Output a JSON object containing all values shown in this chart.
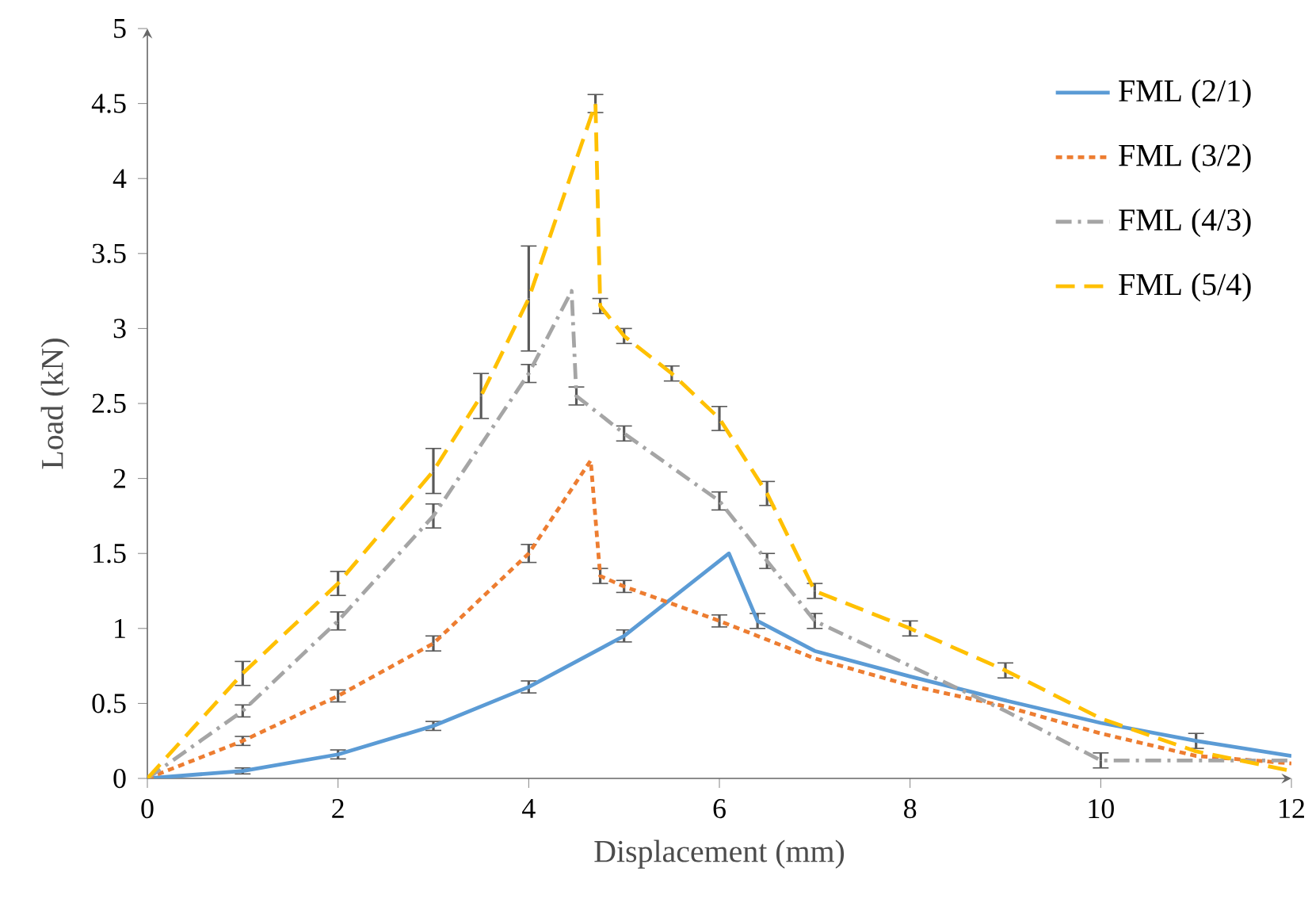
{
  "chart_data": {
    "type": "line",
    "xlabel": "Displacement (mm)",
    "ylabel": "Load (kN)",
    "xlim": [
      0,
      12
    ],
    "ylim": [
      0,
      5
    ],
    "xticks": [
      0,
      2,
      4,
      6,
      8,
      10,
      12
    ],
    "yticks": [
      0,
      0.5,
      1,
      1.5,
      2,
      2.5,
      3,
      3.5,
      4,
      4.5,
      5
    ],
    "grid": false,
    "legend": "top right",
    "marker": "none",
    "series": [
      {
        "name": "FML (2/1)",
        "color": "#5b9bd5",
        "line_style": "solid",
        "x": [
          0,
          1,
          2,
          3,
          4,
          5,
          6.1,
          6.4,
          7,
          8,
          9,
          10,
          11,
          12
        ],
        "values": [
          0,
          0.05,
          0.16,
          0.35,
          0.61,
          0.95,
          1.5,
          1.05,
          0.85,
          0.68,
          0.52,
          0.37,
          0.25,
          0.15
        ],
        "errors": [
          null,
          0.02,
          0.03,
          0.03,
          0.04,
          0.04,
          null,
          0.05,
          null,
          null,
          null,
          null,
          0.05,
          null
        ]
      },
      {
        "name": "FML (3/2)",
        "color": "#ed7d31",
        "line_style": "dotted",
        "x": [
          0,
          1,
          2,
          3,
          4,
          4.65,
          4.75,
          5,
          6,
          7,
          8,
          9,
          10,
          11,
          12
        ],
        "values": [
          0,
          0.25,
          0.55,
          0.9,
          1.5,
          2.12,
          1.35,
          1.28,
          1.05,
          0.8,
          0.62,
          0.48,
          0.3,
          0.15,
          0.1
        ],
        "errors": [
          null,
          0.03,
          0.04,
          0.05,
          0.06,
          null,
          0.05,
          0.04,
          0.04,
          null,
          null,
          null,
          null,
          null,
          null
        ]
      },
      {
        "name": "FML (4/3)",
        "color": "#a5a5a5",
        "line_style": "dashdot",
        "x": [
          0,
          1,
          2,
          3,
          4,
          4.45,
          4.5,
          5,
          6,
          6.5,
          7,
          8,
          9,
          10,
          11,
          12
        ],
        "values": [
          0,
          0.45,
          1.05,
          1.75,
          2.7,
          3.25,
          2.55,
          2.3,
          1.85,
          1.45,
          1.05,
          0.75,
          0.45,
          0.12,
          0.12,
          0.12
        ],
        "errors": [
          null,
          0.04,
          0.06,
          0.08,
          0.06,
          null,
          0.06,
          0.05,
          0.06,
          0.05,
          0.05,
          null,
          null,
          0.05,
          null,
          null
        ]
      },
      {
        "name": "FML (5/4)",
        "color": "#ffc000",
        "line_style": "dashed",
        "x": [
          0,
          1,
          2,
          3,
          3.5,
          4,
          4.7,
          4.75,
          5,
          5.5,
          6,
          6.5,
          7,
          8,
          9,
          10,
          11,
          12
        ],
        "values": [
          0,
          0.7,
          1.3,
          2.05,
          2.55,
          3.2,
          4.5,
          3.15,
          2.95,
          2.7,
          2.4,
          1.9,
          1.25,
          1.0,
          0.72,
          0.4,
          0.18,
          0.05
        ],
        "errors": [
          null,
          0.08,
          0.08,
          0.15,
          0.15,
          0.35,
          0.06,
          0.05,
          0.05,
          0.05,
          0.08,
          0.08,
          0.05,
          0.05,
          0.05,
          null,
          null,
          null
        ]
      }
    ]
  }
}
